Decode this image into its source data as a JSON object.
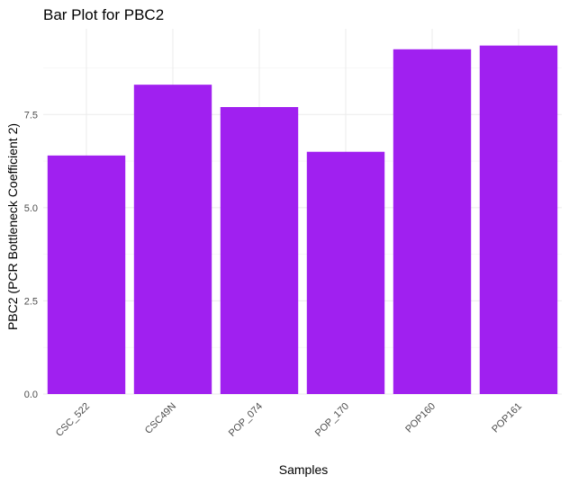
{
  "chart_data": {
    "type": "bar",
    "title": "Bar Plot for PBC2",
    "xlabel": "Samples",
    "ylabel": "PBC2 (PCR Bottleneck Coefficient 2)",
    "categories": [
      "CSC_522",
      "CSC49N",
      "POP_074",
      "POP_170",
      "POP160",
      "POP161"
    ],
    "values": [
      6.4,
      8.3,
      7.7,
      6.5,
      9.25,
      9.35
    ],
    "ylim": [
      0,
      9.35
    ],
    "yticks": [
      0,
      2.5,
      5,
      7.5
    ],
    "ytick_labels": [
      "0.0",
      "2.5",
      "5.0",
      "7.5"
    ],
    "bar_color": "#a020f0",
    "grid": true,
    "legend": "none"
  }
}
